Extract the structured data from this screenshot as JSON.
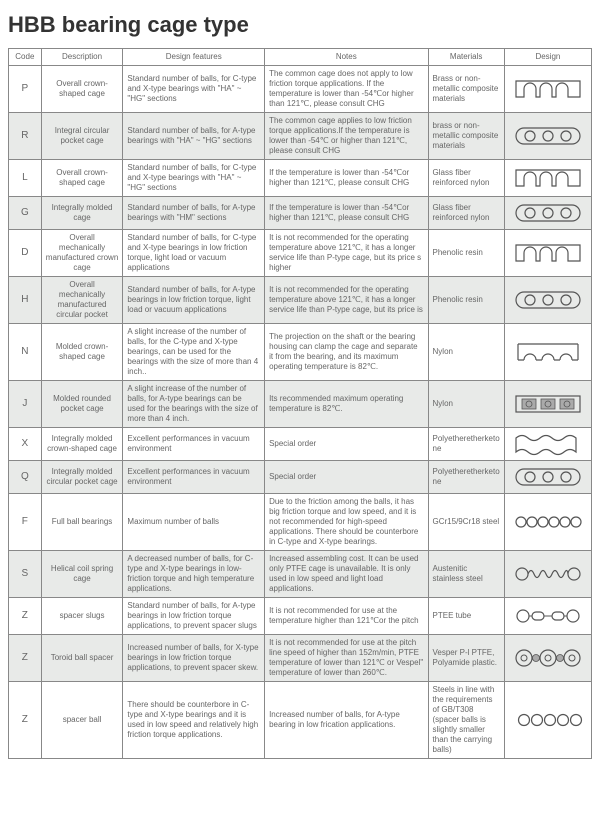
{
  "title": "HBB bearing cage type",
  "colors": {
    "text": "#666666",
    "heading": "#333333",
    "border": "#888888",
    "alt_row_bg": "#e8eae8",
    "svg_stroke": "#555555",
    "svg_fill": "#aaaaaa",
    "bg": "#ffffff"
  },
  "columns": [
    "Code",
    "Description",
    "Design features",
    "Notes",
    "Materials",
    "Design"
  ],
  "rows": [
    {
      "code": "P",
      "description": "Overall crown-shaped cage",
      "features": "Standard number of balls, for C-type and X-type bearings with \"HA\" ~ \"HG\" sections",
      "notes": "The common cage does not apply to low friction torque applications. If the temperature is lower than -54℃or higher than 121℃, please consult CHG",
      "materials": "Brass or non-metallic composite materials",
      "design": "crown"
    },
    {
      "code": "R",
      "description": "Integral circular pocket cage",
      "features": "Standard number of balls, for A-type bearings with \"HA\" ~ \"HG\" sections",
      "notes": "The common cage applies to low friction torque applications.If the temperature is lower than -54℃ or higher than 121℃, please consult CHG",
      "materials": "brass or non-metallic composite materials",
      "design": "ring3"
    },
    {
      "code": "L",
      "description": "Overall crown-shaped cage",
      "features": "Standard number of balls, for C-type and X-type bearings with \"HA\" ~ \"HG\" sections",
      "notes": "If the temperature is lower than -54℃or higher than 121℃, please consult CHG",
      "materials": "Glass fiber reinforced nylon",
      "design": "crown"
    },
    {
      "code": "G",
      "description": "Integrally molded cage",
      "features": "Standard number of balls, for A-type bearings with \"HM\" sections",
      "notes": "If the temperature is lower than -54℃or higher than 121℃, please consult CHG",
      "materials": "Glass fiber reinforced nylon",
      "design": "ring3"
    },
    {
      "code": "D",
      "description": "Overall mechanically manufactured crown cage",
      "features": "Standard number of balls, for C-type and X-type bearings in low friction torque, light load or vacuum applications",
      "notes": "It is not recommended for the operating temperature above 121℃, it has a longer service life than P-type cage, but its price s higher",
      "materials": "Phenolic resin",
      "design": "crown"
    },
    {
      "code": "H",
      "description": "Overall mechanically manufactured circular pocket",
      "features": "Standard number of balls, for A-type bearings in low friction torque, light load or vacuum applications",
      "notes": "It is not recommended for the operating temperature above 121℃, it has a longer service life than P-type cage, but its price is",
      "materials": "Phenolic resin",
      "design": "ring3"
    },
    {
      "code": "N",
      "description": "Molded crown-shaped cage",
      "features": "A slight increase of the number of balls, for the C-type and X-type bearings, can be used for the bearings with the size of more than 4 inch..",
      "notes": "The projection on the shaft or the bearing housing can clamp the cage and separate it from the bearing, and its maximum operating temperature is 82℃.",
      "materials": "Nylon",
      "design": "crown-open"
    },
    {
      "code": "J",
      "description": "Molded rounded pocket cage",
      "features": "A slight increase of the number of balls, for A-type bearings can be used for the bearings with the size of more than 4 inch.",
      "notes": "Its recommended maximum operating temperature is 82℃.",
      "materials": "Nylon",
      "design": "squares3"
    },
    {
      "code": "X",
      "description": "Integrally molded crown-shaped cage",
      "features": "Excellent performances in vacuum environment",
      "notes": "Special order",
      "materials": "Polyetheretherketone",
      "design": "crown-wavy"
    },
    {
      "code": "Q",
      "description": "Integrally molded circular pocket cage",
      "features": "Excellent performances in vacuum environment",
      "notes": "Special order",
      "materials": "Polyetheretherketone",
      "design": "ring3"
    },
    {
      "code": "F",
      "description": "Full ball bearings",
      "features": "Maximum number of balls",
      "notes": "Due to the friction among the balls, it has big friction torque and low speed, and it is not recommended for high-speed applications. There should be counterbore in C-type and X-type bearings.",
      "materials": "GCr15/9Cr18 steel",
      "design": "circles6"
    },
    {
      "code": "S",
      "description": "Helical coil spring cage",
      "features": "A decreased number of balls, for C-type and X-type bearings in low-friction torque and high temperature applications.",
      "notes": "Increased assembling cost. It can be used only PTFE cage is unavailable. It is only used in low speed and light load applications.",
      "materials": "Austenitic stainless steel",
      "design": "spring"
    },
    {
      "code": "Z",
      "description": "spacer slugs",
      "features": "Standard number of balls, for A-type bearings in low friction torque applications, to prevent spacer slugs",
      "notes": "It is not recommended for use at the temperature higher than 121℃or the pitch",
      "materials": "PTEE tube",
      "design": "slugs"
    },
    {
      "code": "Z",
      "description": "Toroid ball spacer",
      "features": "Increased number of balls, for X-type bearings in low friction torque applications, to prevent spacer skew.",
      "notes": "It is not recommended for use at the pitch line speed of higher than 152m/min, PTFE temperature of lower than 121℃ or Vespel\" temperature of lower than 260℃.",
      "materials": "Vesper P-l PTFE, Polyamide plastic.",
      "design": "toroid"
    },
    {
      "code": "Z",
      "description": "spacer ball",
      "features": "There should be counterbore in C-type and X-type bearings and it is used in low speed and relatively high friction torque applications.",
      "notes": "Increased number of balls, for A-type bearing in low frication applications.",
      "materials": "Steels in line with the requirements of GB/T308 (spacer balls is slightly smaller than the carrying balls)",
      "design": "circles5"
    }
  ]
}
